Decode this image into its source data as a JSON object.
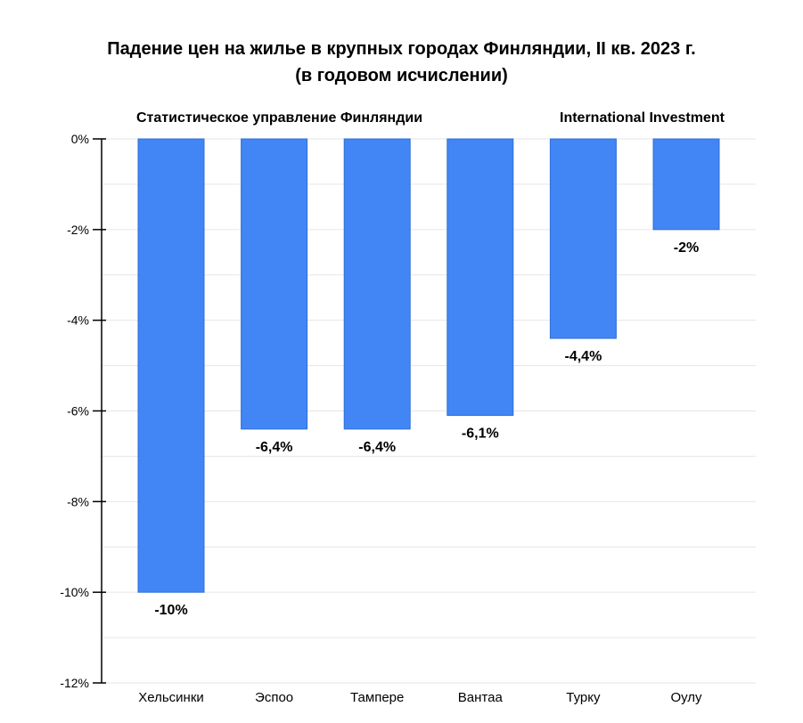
{
  "chart_data": {
    "type": "bar",
    "title": "Падение цен на жилье в крупных городах Финляндии, II кв. 2023 г.",
    "subtitle": "(в годовом исчислении)",
    "categories": [
      "Хельсинки",
      "Эспоо",
      "Тампере",
      "Вантаа",
      "Турку",
      "Оулу"
    ],
    "values": [
      -10,
      -6.4,
      -6.4,
      -6.1,
      -4.4,
      -2
    ],
    "data_labels": [
      "-10%",
      "-6,4%",
      "-6,4%",
      "-6,1%",
      "-4,4%",
      "-2%"
    ],
    "ylim": [
      -12,
      0
    ],
    "y_ticks": [
      0,
      -2,
      -4,
      -6,
      -8,
      -10,
      -12
    ],
    "y_tick_labels": [
      "0%",
      "-2%",
      "-4%",
      "-6%",
      "-8%",
      "-10%",
      "-12%"
    ],
    "source_annotations": [
      "Статистическое управление Финляндии",
      "International Investment"
    ],
    "bar_color": "#4285f4",
    "grid": true
  }
}
